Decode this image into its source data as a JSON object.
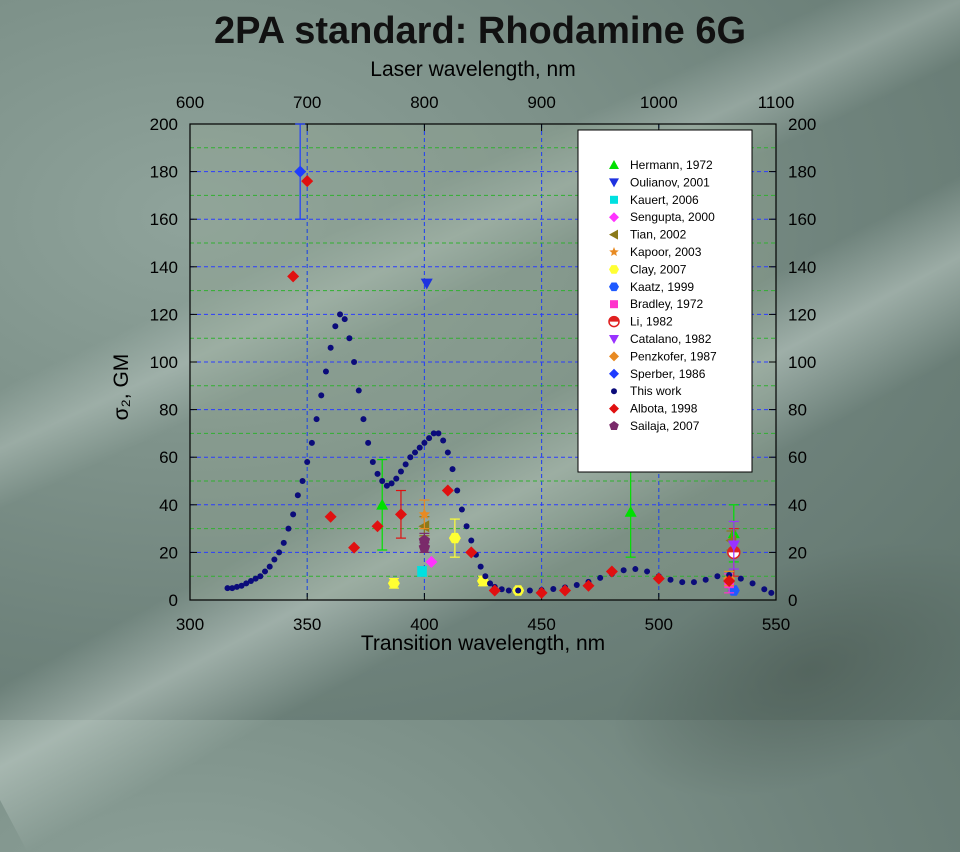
{
  "title": "2PA standard: Rhodamine 6G",
  "chart_data": {
    "type": "scatter",
    "title": "2PA standard: Rhodamine 6G",
    "xlabel": "Transition wavelength, nm",
    "x2label": "Laser wavelength, nm",
    "ylabel": "σ₂, GM",
    "xlim": [
      300,
      550
    ],
    "ylim": [
      0,
      200
    ],
    "x2lim": [
      600,
      1100
    ],
    "xticks": [
      300,
      350,
      400,
      450,
      500,
      550
    ],
    "x2ticks": [
      600,
      700,
      800,
      900,
      1000,
      1100
    ],
    "yticks": [
      0,
      20,
      40,
      60,
      80,
      100,
      120,
      140,
      160,
      180,
      200
    ],
    "grid": true,
    "legend_position": "top-right",
    "series": [
      {
        "name": "Hermann, 1972",
        "marker": "triangle-up",
        "color": "#00e000",
        "points": [
          {
            "x": 382,
            "y": 40,
            "err": 19
          },
          {
            "x": 488,
            "y": 37,
            "err": 19
          },
          {
            "x": 532,
            "y": 28,
            "err": 12
          }
        ]
      },
      {
        "name": "Oulianov, 2001",
        "marker": "triangle-down",
        "color": "#1e32e0",
        "points": [
          {
            "x": 401,
            "y": 133,
            "err": 0
          }
        ]
      },
      {
        "name": "Kauert, 2006",
        "marker": "square",
        "color": "#00e0e0",
        "points": [
          {
            "x": 399,
            "y": 12,
            "err": 2
          }
        ]
      },
      {
        "name": "Sengupta, 2000",
        "marker": "diamond",
        "color": "#ff33ff",
        "points": [
          {
            "x": 403,
            "y": 16,
            "err": 0
          }
        ]
      },
      {
        "name": "Tian, 2002",
        "marker": "triangle-left",
        "color": "#8b7a1a",
        "points": [
          {
            "x": 400,
            "y": 31,
            "err": 4
          },
          {
            "x": 531,
            "y": 25,
            "err": 4
          }
        ]
      },
      {
        "name": "Kapoor, 2003",
        "marker": "star",
        "color": "#e88a22",
        "points": [
          {
            "x": 400,
            "y": 36,
            "err": 6
          }
        ]
      },
      {
        "name": "Clay, 2007",
        "marker": "hexagon",
        "color": "#ffff33",
        "points": [
          {
            "x": 387,
            "y": 7,
            "err": 2
          },
          {
            "x": 413,
            "y": 26,
            "err": 8
          },
          {
            "x": 425,
            "y": 8,
            "err": 2
          },
          {
            "x": 440,
            "y": 4,
            "err": 1
          }
        ]
      },
      {
        "name": "Kaatz, 1999",
        "marker": "hexagon",
        "color": "#1e5aff",
        "points": [
          {
            "x": 532,
            "y": 4,
            "err": 0
          }
        ]
      },
      {
        "name": "Bradley, 1972",
        "marker": "square",
        "color": "#ff33cc",
        "points": [
          {
            "x": 530,
            "y": 7,
            "err": 4
          }
        ]
      },
      {
        "name": "Li, 1982",
        "marker": "half-circle",
        "color": "#e02020",
        "points": [
          {
            "x": 532,
            "y": 20,
            "err": 10
          }
        ]
      },
      {
        "name": "Catalano, 1982",
        "marker": "triangle-down",
        "color": "#9933ff",
        "points": [
          {
            "x": 532,
            "y": 23,
            "err": 10
          }
        ]
      },
      {
        "name": "Penzkofer, 1987",
        "marker": "diamond",
        "color": "#e88a22",
        "points": [
          {
            "x": 530,
            "y": 9,
            "err": 3
          }
        ]
      },
      {
        "name": "Sperber, 1986",
        "marker": "diamond",
        "color": "#1e3cff",
        "points": [
          {
            "x": 347,
            "y": 180,
            "err": 20
          }
        ]
      },
      {
        "name": "This work",
        "marker": "dot",
        "color": "#0b0b7a",
        "points": [
          {
            "x": 316,
            "y": 5
          },
          {
            "x": 318,
            "y": 5
          },
          {
            "x": 320,
            "y": 5.5
          },
          {
            "x": 322,
            "y": 6
          },
          {
            "x": 324,
            "y": 7
          },
          {
            "x": 326,
            "y": 8
          },
          {
            "x": 328,
            "y": 9
          },
          {
            "x": 330,
            "y": 10
          },
          {
            "x": 332,
            "y": 12
          },
          {
            "x": 334,
            "y": 14
          },
          {
            "x": 336,
            "y": 17
          },
          {
            "x": 338,
            "y": 20
          },
          {
            "x": 340,
            "y": 24
          },
          {
            "x": 342,
            "y": 30
          },
          {
            "x": 344,
            "y": 36
          },
          {
            "x": 346,
            "y": 44
          },
          {
            "x": 348,
            "y": 50
          },
          {
            "x": 350,
            "y": 58
          },
          {
            "x": 352,
            "y": 66
          },
          {
            "x": 354,
            "y": 76
          },
          {
            "x": 356,
            "y": 86
          },
          {
            "x": 358,
            "y": 96
          },
          {
            "x": 360,
            "y": 106
          },
          {
            "x": 362,
            "y": 115
          },
          {
            "x": 364,
            "y": 120
          },
          {
            "x": 366,
            "y": 118
          },
          {
            "x": 368,
            "y": 110
          },
          {
            "x": 370,
            "y": 100
          },
          {
            "x": 372,
            "y": 88
          },
          {
            "x": 374,
            "y": 76
          },
          {
            "x": 376,
            "y": 66
          },
          {
            "x": 378,
            "y": 58
          },
          {
            "x": 380,
            "y": 53
          },
          {
            "x": 382,
            "y": 50
          },
          {
            "x": 384,
            "y": 48
          },
          {
            "x": 386,
            "y": 49
          },
          {
            "x": 388,
            "y": 51
          },
          {
            "x": 390,
            "y": 54
          },
          {
            "x": 392,
            "y": 57
          },
          {
            "x": 394,
            "y": 60
          },
          {
            "x": 396,
            "y": 62
          },
          {
            "x": 398,
            "y": 64
          },
          {
            "x": 400,
            "y": 66
          },
          {
            "x": 402,
            "y": 68
          },
          {
            "x": 404,
            "y": 70
          },
          {
            "x": 406,
            "y": 70
          },
          {
            "x": 408,
            "y": 67
          },
          {
            "x": 410,
            "y": 62
          },
          {
            "x": 412,
            "y": 55
          },
          {
            "x": 414,
            "y": 46
          },
          {
            "x": 416,
            "y": 38
          },
          {
            "x": 418,
            "y": 31
          },
          {
            "x": 420,
            "y": 25
          },
          {
            "x": 422,
            "y": 19
          },
          {
            "x": 424,
            "y": 14
          },
          {
            "x": 426,
            "y": 10
          },
          {
            "x": 428,
            "y": 7
          },
          {
            "x": 430,
            "y": 5.5
          },
          {
            "x": 433,
            "y": 4.5
          },
          {
            "x": 436,
            "y": 4
          },
          {
            "x": 440,
            "y": 4
          },
          {
            "x": 445,
            "y": 4
          },
          {
            "x": 450,
            "y": 4.2
          },
          {
            "x": 455,
            "y": 4.6
          },
          {
            "x": 460,
            "y": 5.3
          },
          {
            "x": 465,
            "y": 6.3
          },
          {
            "x": 470,
            "y": 7.6
          },
          {
            "x": 475,
            "y": 9.3
          },
          {
            "x": 480,
            "y": 11
          },
          {
            "x": 485,
            "y": 12.5
          },
          {
            "x": 490,
            "y": 13
          },
          {
            "x": 495,
            "y": 12
          },
          {
            "x": 500,
            "y": 10
          },
          {
            "x": 505,
            "y": 8.5
          },
          {
            "x": 510,
            "y": 7.5
          },
          {
            "x": 515,
            "y": 7.5
          },
          {
            "x": 520,
            "y": 8.5
          },
          {
            "x": 525,
            "y": 10
          },
          {
            "x": 530,
            "y": 10.5
          },
          {
            "x": 535,
            "y": 9
          },
          {
            "x": 540,
            "y": 7
          },
          {
            "x": 545,
            "y": 4.5
          },
          {
            "x": 548,
            "y": 3
          }
        ]
      },
      {
        "name": "Albota, 1998",
        "marker": "diamond",
        "color": "#e01010",
        "points": [
          {
            "x": 344,
            "y": 136
          },
          {
            "x": 350,
            "y": 176
          },
          {
            "x": 360,
            "y": 35
          },
          {
            "x": 370,
            "y": 22
          },
          {
            "x": 380,
            "y": 31
          },
          {
            "x": 390,
            "y": 36,
            "err": 10
          },
          {
            "x": 410,
            "y": 46
          },
          {
            "x": 420,
            "y": 20
          },
          {
            "x": 430,
            "y": 4
          },
          {
            "x": 450,
            "y": 3
          },
          {
            "x": 460,
            "y": 4
          },
          {
            "x": 470,
            "y": 6
          },
          {
            "x": 480,
            "y": 12
          },
          {
            "x": 500,
            "y": 9
          },
          {
            "x": 530,
            "y": 8
          }
        ]
      },
      {
        "name": "Sailaja, 2007",
        "marker": "pentagon",
        "color": "#7a2a6a",
        "points": [
          {
            "x": 400,
            "y": 25,
            "err": 3
          },
          {
            "x": 400,
            "y": 22,
            "err": 2
          }
        ]
      }
    ]
  }
}
